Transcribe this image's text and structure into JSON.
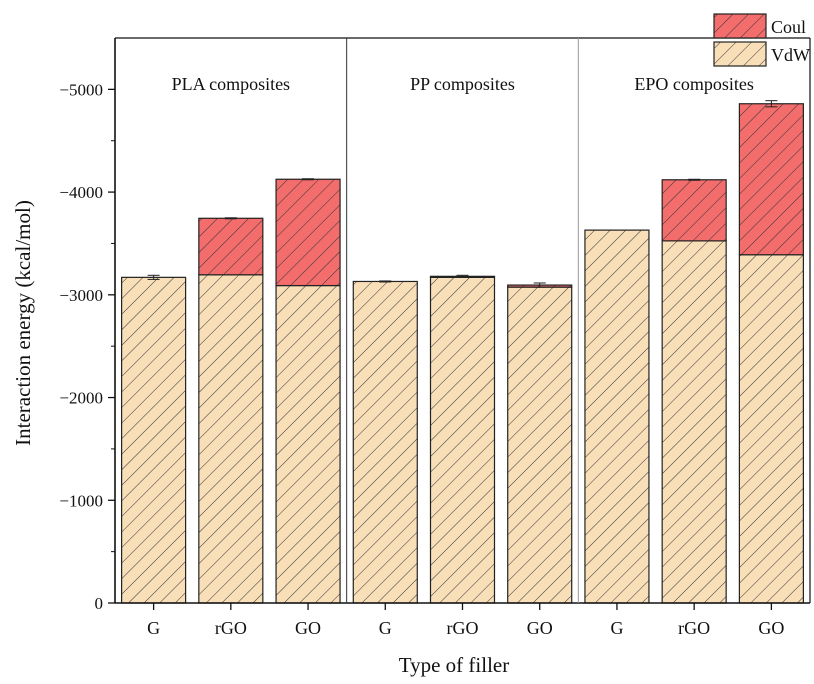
{
  "chart_data": {
    "type": "bar",
    "stacked": true,
    "xlabel": "Type of filler",
    "ylabel": "Interaction energy (kcal/mol)",
    "ylim": [
      0,
      -5500
    ],
    "y_ticks": [
      0,
      -1000,
      -2000,
      -3000,
      -4000,
      -5000
    ],
    "y_tick_labels": [
      "0",
      "−1000",
      "−2000",
      "−3000",
      "−4000",
      "−5000"
    ],
    "groups": [
      {
        "label": "PLA composites",
        "categories": [
          "G",
          "rGO",
          "GO"
        ]
      },
      {
        "label": "PP composites",
        "categories": [
          "G",
          "rGO",
          "GO"
        ]
      },
      {
        "label": "EPO composites",
        "categories": [
          "G",
          "rGO",
          "GO"
        ]
      }
    ],
    "categories": [
      "G",
      "rGO",
      "GO",
      "G",
      "rGO",
      "GO",
      "G",
      "rGO",
      "GO"
    ],
    "series": [
      {
        "name": "VdW",
        "color": "#f8dfb8",
        "values": [
          -3170,
          -3195,
          -3090,
          -3130,
          -3170,
          -3075,
          -3630,
          -3525,
          -3390
        ]
      },
      {
        "name": "Coul",
        "color": "#f26d6b",
        "values": [
          0,
          -550,
          -1035,
          0,
          -10,
          -20,
          0,
          -595,
          -1470
        ]
      }
    ],
    "error_bars": [
      20,
      5,
      5,
      5,
      10,
      20,
      0,
      5,
      30
    ],
    "legend_position": "top-right",
    "grid": false
  }
}
